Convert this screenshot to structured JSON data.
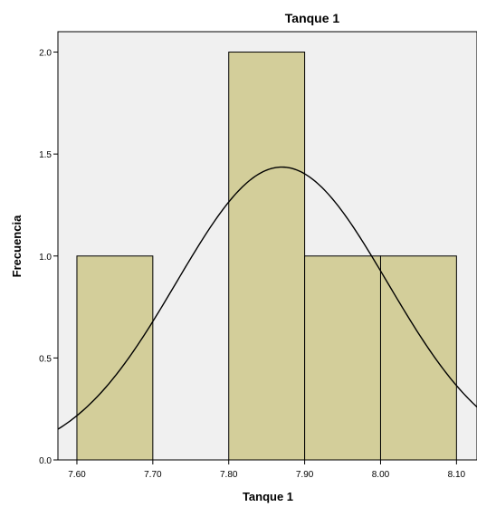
{
  "chart_data": {
    "type": "bar",
    "subtype": "histogram",
    "title": "Tanque 1",
    "xlabel": "Tanque 1",
    "ylabel": "Frecuencia",
    "xlim": [
      7.575,
      8.127
    ],
    "ylim": [
      0,
      2.1
    ],
    "x_ticks": [
      "7.60",
      "7.70",
      "7.80",
      "7.90",
      "8.00",
      "8.10"
    ],
    "y_ticks": [
      "0.0",
      "0.5",
      "1.0",
      "1.5",
      "2.0"
    ],
    "bins": [
      {
        "start": 7.6,
        "end": 7.7,
        "value": 1
      },
      {
        "start": 7.7,
        "end": 7.8,
        "value": 0
      },
      {
        "start": 7.8,
        "end": 7.9,
        "value": 2
      },
      {
        "start": 7.9,
        "end": 8.0,
        "value": 1
      },
      {
        "start": 8.0,
        "end": 8.1,
        "value": 1
      }
    ],
    "normal_curve": {
      "mean": 7.87,
      "sd": 0.1389,
      "n": 5,
      "bin_width": 0.1
    },
    "grid": false,
    "legend": "none",
    "colors": {
      "plot_background": "#f0f0f0",
      "bar_fill": "#d3ce9a",
      "bar_stroke": "#000000",
      "curve": "#000000"
    }
  }
}
